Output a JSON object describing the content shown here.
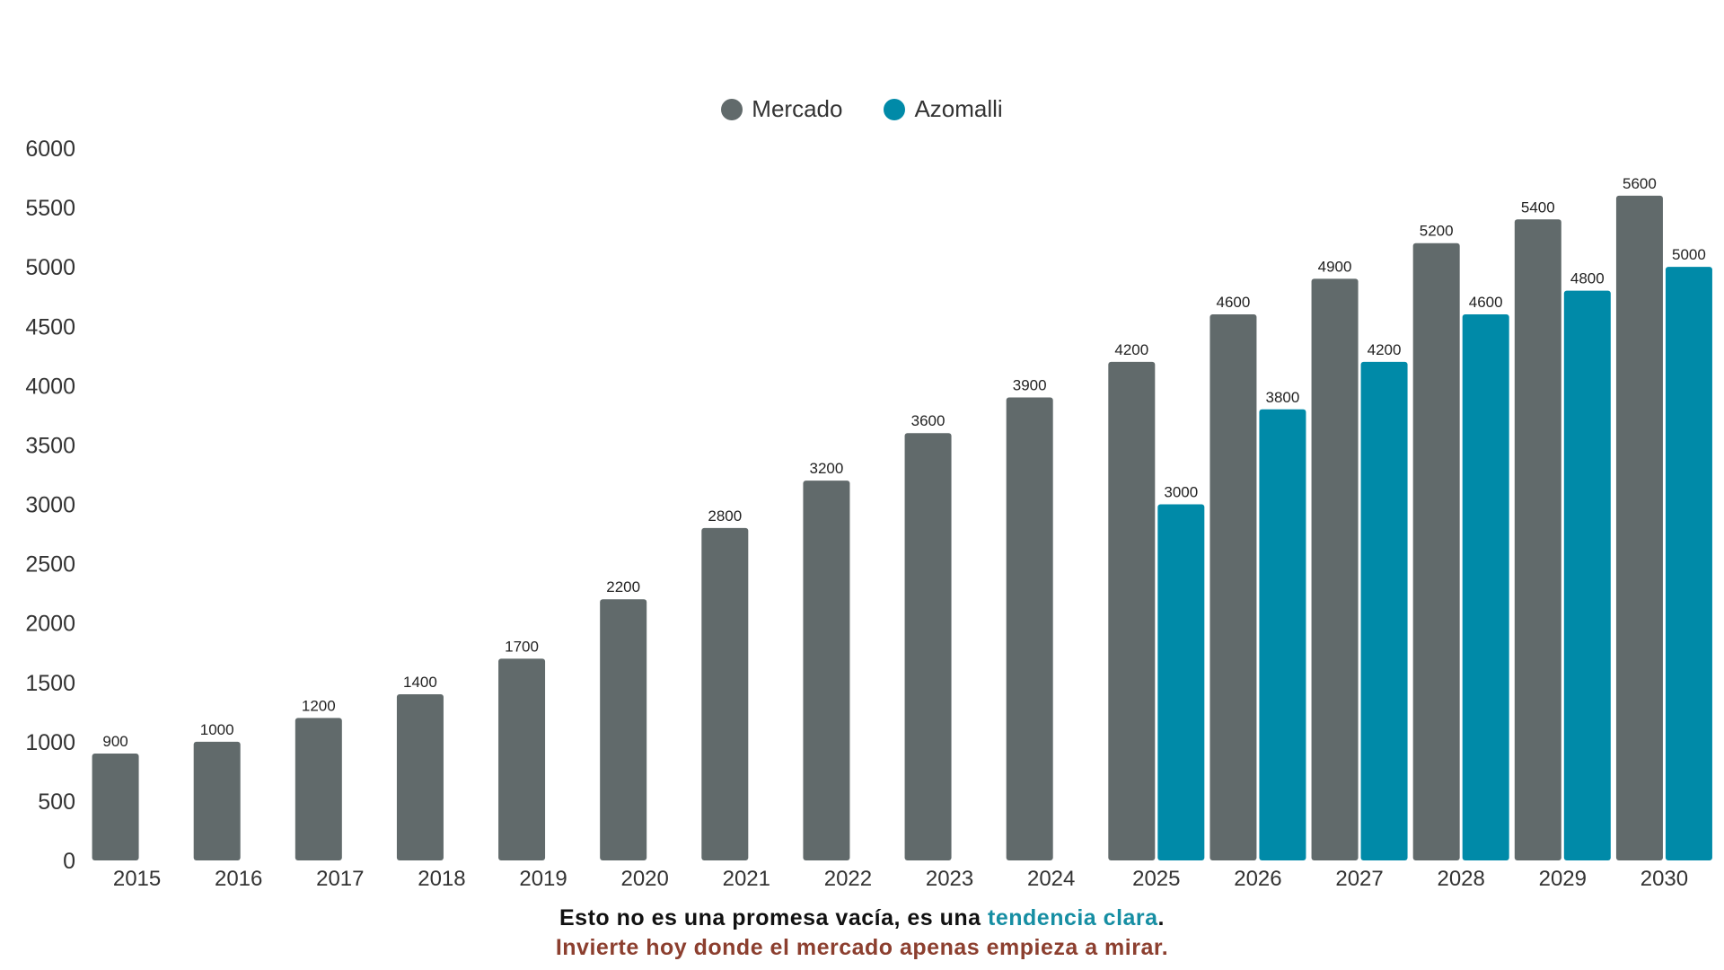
{
  "chart_data": {
    "type": "bar",
    "categories": [
      "2015",
      "2016",
      "2017",
      "2018",
      "2019",
      "2020",
      "2021",
      "2022",
      "2023",
      "2024",
      "2025",
      "2026",
      "2027",
      "2028",
      "2029",
      "2030"
    ],
    "series": [
      {
        "name": "Mercado",
        "color": "#616a6b",
        "values": [
          900,
          1000,
          1200,
          1400,
          1700,
          2200,
          2800,
          3200,
          3600,
          3900,
          4200,
          4600,
          4900,
          5200,
          5400,
          5600
        ]
      },
      {
        "name": "Azomalli",
        "color": "#008aa8",
        "values": [
          null,
          null,
          null,
          null,
          null,
          null,
          null,
          null,
          null,
          null,
          3000,
          3800,
          4200,
          4600,
          4800,
          5000
        ]
      }
    ],
    "yticks": [
      0,
      500,
      1000,
      1500,
      2000,
      2500,
      3000,
      3500,
      4000,
      4500,
      5000,
      5500,
      6000
    ],
    "ylim": [
      0,
      6000
    ],
    "grid": false,
    "legend_position": "top-center"
  },
  "caption": {
    "line1_before": "Esto no es una promesa vacía, es una ",
    "line1_highlight": "tendencia clara",
    "line1_after": ".",
    "line2": "Invierte hoy donde el mercado apenas empieza a mirar."
  }
}
